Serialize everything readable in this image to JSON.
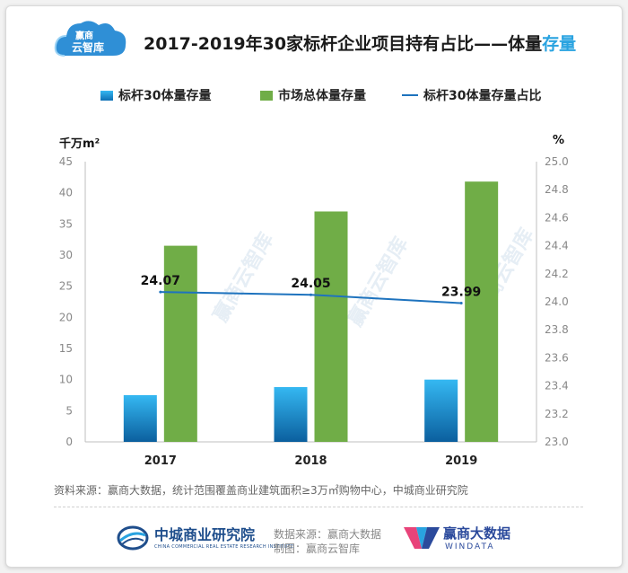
{
  "logo": {
    "line1": "赢商",
    "line2": "云智库"
  },
  "title": {
    "main": "2017-2019年30家标杆企业项目持有占比——体量",
    "highlight": "存量"
  },
  "chart_data": {
    "type": "bar",
    "categories": [
      "2017",
      "2018",
      "2019"
    ],
    "series": [
      {
        "name": "标杆30体量存量",
        "type": "bar",
        "axis": "left",
        "values": [
          7.5,
          8.8,
          10.0
        ],
        "color": "#1a8fd8"
      },
      {
        "name": "市场总体量存量",
        "type": "bar",
        "axis": "left",
        "values": [
          31.5,
          37.0,
          41.8
        ],
        "color": "#70ad47"
      },
      {
        "name": "标杆30体量存量占比",
        "type": "line",
        "axis": "right",
        "values": [
          24.07,
          24.05,
          23.99
        ],
        "labels": [
          "24.07",
          "24.05",
          "23.99"
        ],
        "color": "#1e73be"
      }
    ],
    "y_left": {
      "unit": "千万m²",
      "min": 0,
      "max": 45,
      "ticks": [
        "0",
        "5",
        "10",
        "15",
        "20",
        "25",
        "30",
        "35",
        "40",
        "45"
      ]
    },
    "y_right": {
      "unit": "%",
      "min": 23.0,
      "max": 25.0,
      "ticks": [
        "23.0",
        "23.2",
        "23.4",
        "23.6",
        "23.8",
        "24.0",
        "24.2",
        "24.4",
        "24.6",
        "24.8",
        "25.0"
      ]
    },
    "grid": false,
    "legend_position": "top"
  },
  "source_note": "资料来源：赢商大数据，统计范围覆盖商业建筑面积≥3万㎡购物中心，中城商业研究院",
  "footer": {
    "org_name": "中城商业研究院",
    "org_sub": "CHINA COMMERCIAL REAL ESTATE RESEARCH INSTITUTE",
    "credit_data": "数据来源：赢商大数据",
    "credit_made": "制图：赢商云智库",
    "brand_name": "赢商大数据",
    "brand_sub": "WINDATA"
  },
  "colors": {
    "accent": "#29a3e0",
    "bar_blue": "#1a8fd8",
    "bar_green": "#70ad47",
    "line": "#1e73be"
  }
}
